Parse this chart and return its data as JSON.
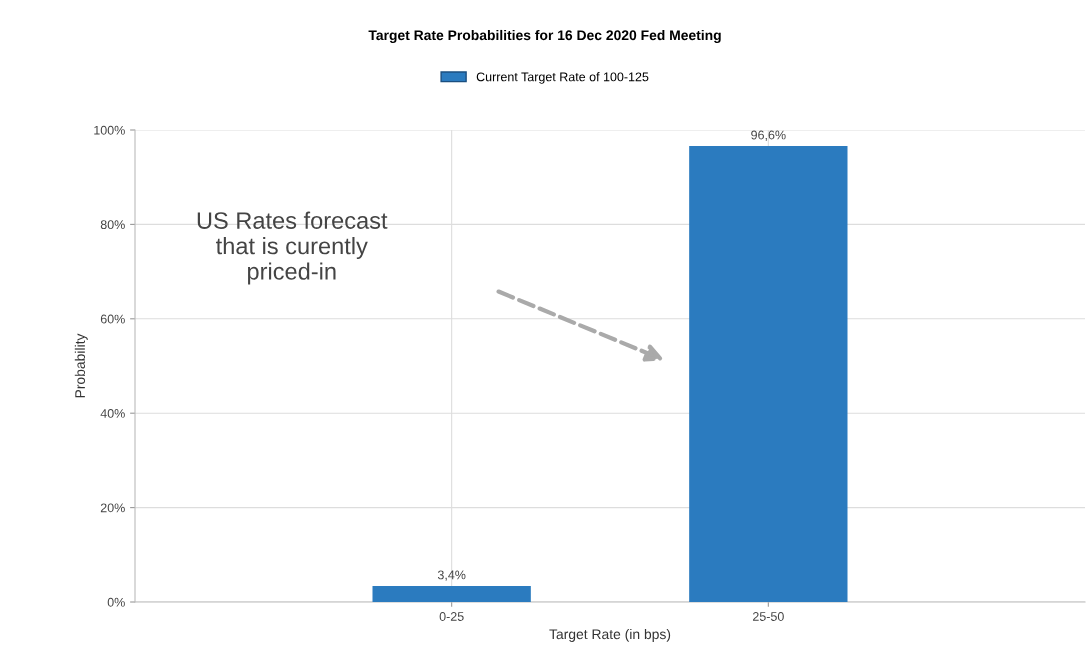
{
  "chart_data": {
    "type": "bar",
    "title": "Target Rate Probabilities for 16 Dec 2020 Fed Meeting",
    "xlabel": "Target Rate (in bps)",
    "ylabel": "Probability",
    "categories": [
      "0-25",
      "25-50"
    ],
    "series": [
      {
        "name": "Current Target Rate of 100-125",
        "color": "#2b7bbf",
        "values": [
          3.4,
          96.6
        ],
        "value_labels": [
          "3,4%",
          "96,6%"
        ]
      }
    ],
    "ylim": [
      0,
      100
    ],
    "yticks": [
      {
        "value": 0,
        "label": "0%"
      },
      {
        "value": 20,
        "label": "20%"
      },
      {
        "value": 40,
        "label": "40%"
      },
      {
        "value": 60,
        "label": "60%"
      },
      {
        "value": 80,
        "label": "80%"
      },
      {
        "value": 100,
        "label": "100%"
      }
    ],
    "grid": true,
    "legend": "top",
    "annotations": [
      "US Rates forecast\nthat is curently\npriced-in"
    ]
  }
}
